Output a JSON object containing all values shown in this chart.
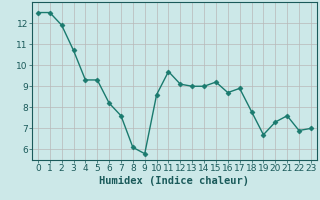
{
  "x": [
    0,
    1,
    2,
    3,
    4,
    5,
    6,
    7,
    8,
    9,
    10,
    11,
    12,
    13,
    14,
    15,
    16,
    17,
    18,
    19,
    20,
    21,
    22,
    23
  ],
  "y": [
    12.5,
    12.5,
    11.9,
    10.7,
    9.3,
    9.3,
    8.2,
    7.6,
    6.1,
    5.8,
    8.6,
    9.7,
    9.1,
    9.0,
    9.0,
    9.2,
    8.7,
    8.9,
    7.8,
    6.7,
    7.3,
    7.6,
    6.9,
    7.0
  ],
  "line_color": "#1a7a6e",
  "marker": "D",
  "marker_size": 2.5,
  "bg_color": "#cce8e8",
  "grid_color": "#b8b8b8",
  "xlabel": "Humidex (Indice chaleur)",
  "ylabel": "",
  "xlim": [
    -0.5,
    23.5
  ],
  "ylim": [
    5.5,
    13.0
  ],
  "yticks": [
    6,
    7,
    8,
    9,
    10,
    11,
    12
  ],
  "xticks": [
    0,
    1,
    2,
    3,
    4,
    5,
    6,
    7,
    8,
    9,
    10,
    11,
    12,
    13,
    14,
    15,
    16,
    17,
    18,
    19,
    20,
    21,
    22,
    23
  ],
  "tick_fontsize": 6.5,
  "xlabel_fontsize": 7.5,
  "tick_color": "#1a5a5a",
  "spine_color": "#1a5a5a"
}
